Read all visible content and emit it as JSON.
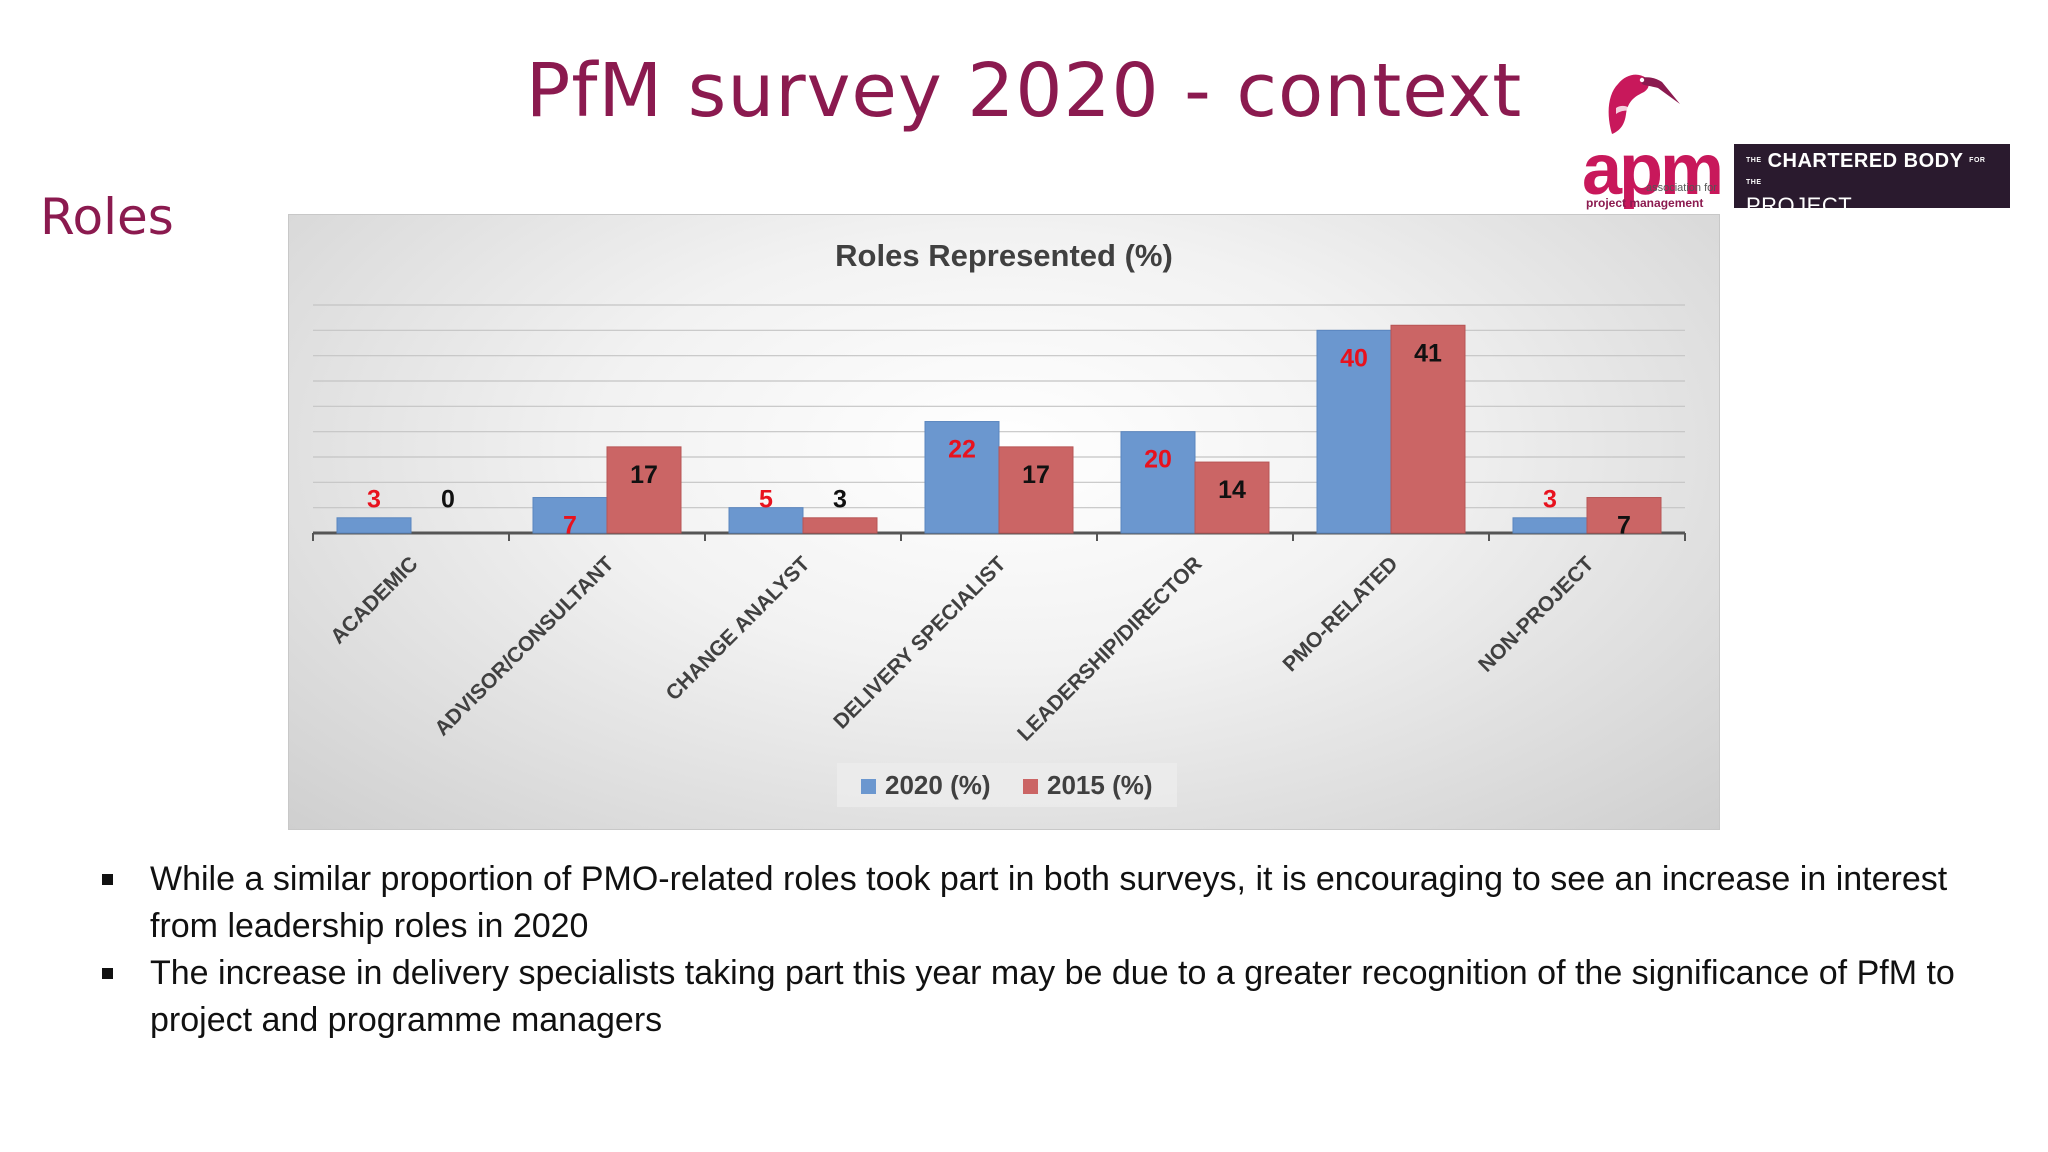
{
  "slide": {
    "title": "PfM survey 2020 - context",
    "section": "Roles"
  },
  "logos": {
    "apm_word": "apm",
    "apm_line1": "association for",
    "apm_line2": "project management",
    "chartered_prefix": "THE",
    "chartered_line1": "CHARTERED BODY",
    "chartered_suffix": "FOR THE",
    "chartered_line2": "PROJECT PROFESSION",
    "apm_color": "#c8185b",
    "chartered_bg": "#2a1a2e"
  },
  "chart_data": {
    "type": "bar",
    "title": "Roles Represented (%)",
    "categories": [
      "ACADEMIC",
      "ADVISOR/CONSULTANT",
      "CHANGE ANALYST",
      "DELIVERY SPECIALIST",
      "LEADERSHIP/DIRECTOR",
      "PMO-RELATED",
      "NON-PROJECT"
    ],
    "series": [
      {
        "name": "2020 (%)",
        "values": [
          3,
          7,
          5,
          22,
          20,
          40,
          3
        ],
        "color": "#6b97cf",
        "label_color": "#e8121e"
      },
      {
        "name": "2015 (%)",
        "values": [
          0,
          17,
          3,
          17,
          14,
          41,
          7
        ],
        "color": "#cb6565",
        "label_color": "#111111"
      }
    ],
    "ylim": [
      0,
      45
    ],
    "grid": true,
    "legend_position": "bottom"
  },
  "bullets": [
    "While a similar proportion of PMO-related roles took part in both surveys, it is encouraging to see an increase in interest from leadership roles in 2020",
    "The increase in delivery specialists taking part this year may be due to a greater recognition of the significance of PfM to project and programme managers"
  ]
}
